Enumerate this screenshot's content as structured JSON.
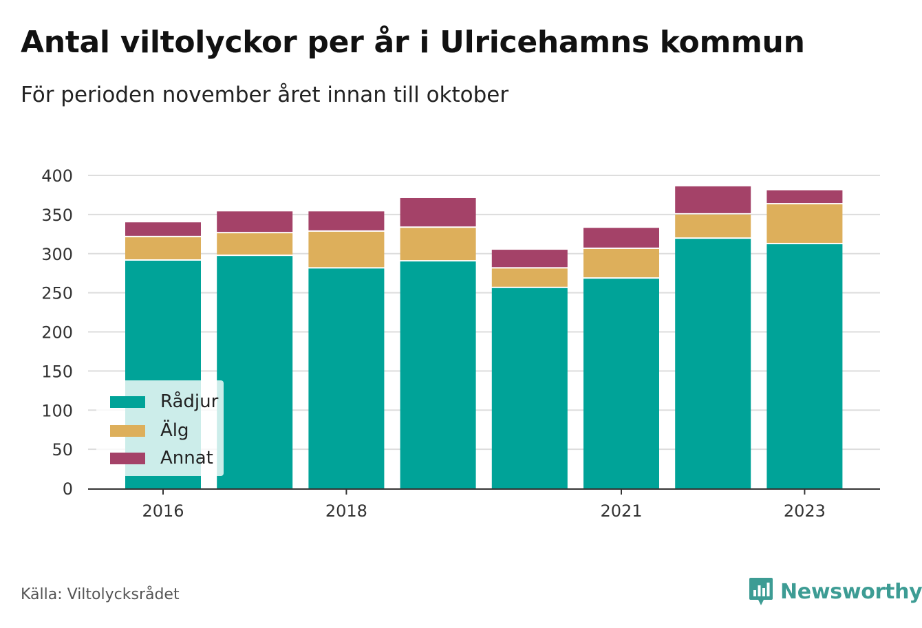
{
  "header": {
    "title": "Antal viltolyckor per år i Ulricehamns kommun",
    "subtitle": "För perioden november året innan till oktober"
  },
  "footer": {
    "source": "Källa: Viltolycksrådet",
    "brand": "Newsworthy",
    "brand_icon": "bar-chart-icon"
  },
  "colors": {
    "radjur": "#00a398",
    "alg": "#ddaf5b",
    "annat": "#a44268",
    "grid": "#dddddd",
    "axis": "#333333",
    "brand": "#3d9c94"
  },
  "chart_data": {
    "type": "bar",
    "stacked": true,
    "categories": [
      "2016",
      "2017",
      "2018",
      "2019",
      "2020",
      "2021",
      "2022",
      "2023"
    ],
    "x_tick_labels": [
      "2016",
      "2018",
      "2021",
      "2023"
    ],
    "series": [
      {
        "name": "Rådjur",
        "values": [
          291,
          297,
          281,
          290,
          256,
          268,
          319,
          312
        ]
      },
      {
        "name": "Älg",
        "values": [
          30,
          29,
          47,
          43,
          25,
          38,
          31,
          51
        ]
      },
      {
        "name": "Annat",
        "values": [
          19,
          28,
          26,
          38,
          24,
          27,
          36,
          18
        ]
      }
    ],
    "ylim": [
      0,
      400
    ],
    "yticks": [
      0,
      50,
      100,
      150,
      200,
      250,
      300,
      350,
      400
    ],
    "grid": true,
    "legend_position": "bottom-left",
    "xlabel": "",
    "ylabel": ""
  }
}
